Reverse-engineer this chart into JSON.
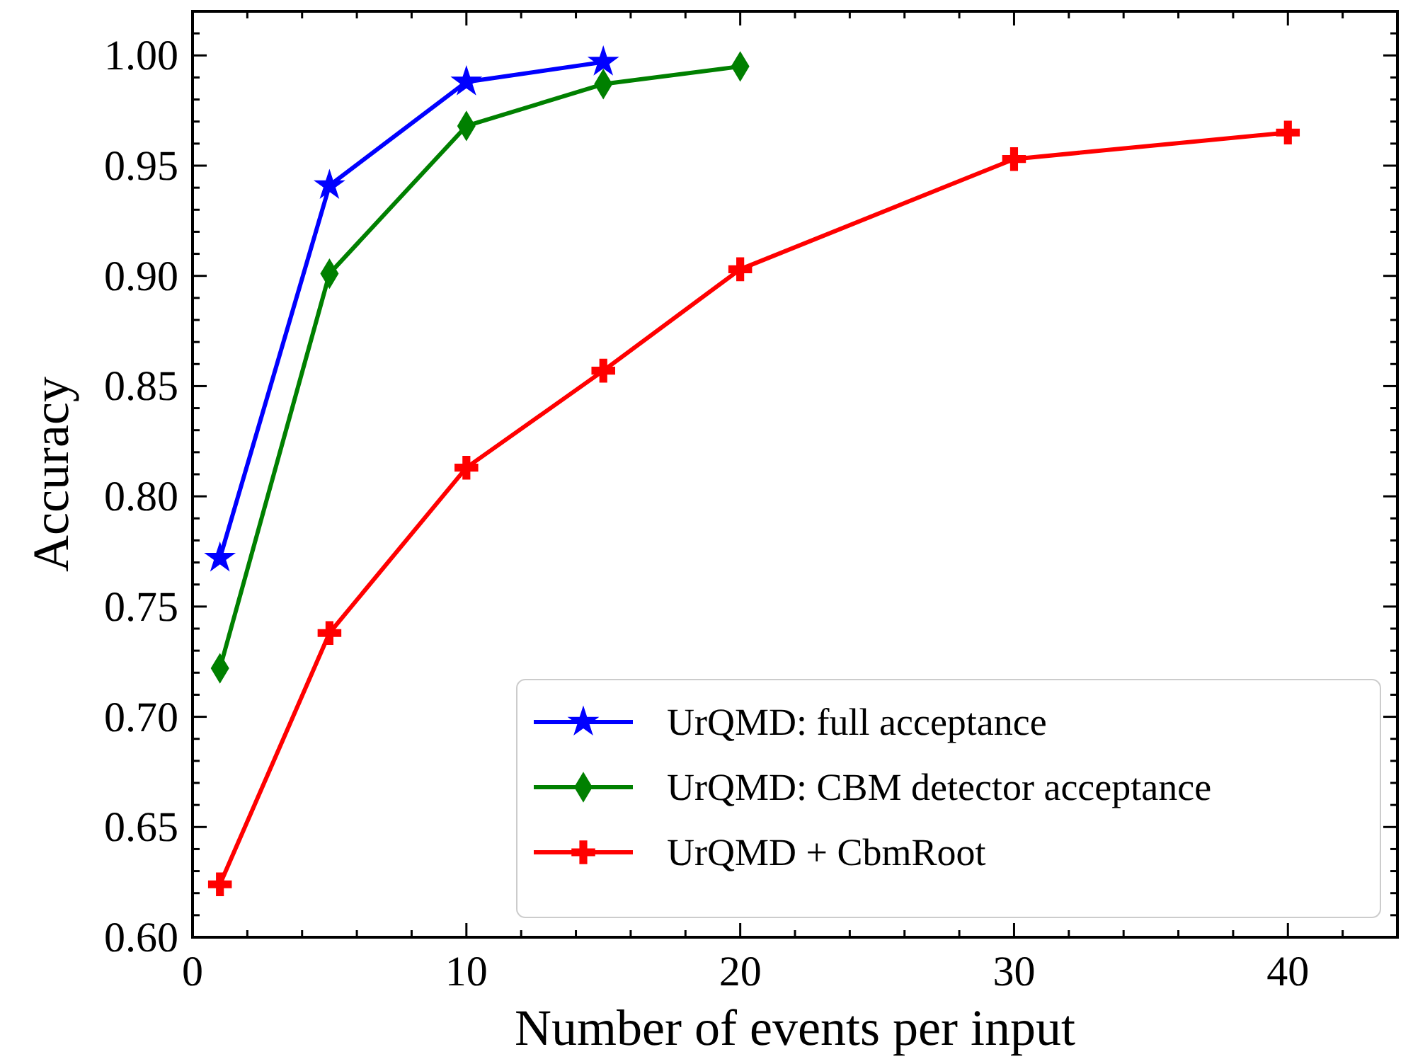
{
  "chart_data": {
    "type": "line",
    "xlabel": "Number of events per input",
    "ylabel": "Accuracy",
    "xlim": [
      0,
      44
    ],
    "ylim": [
      0.6,
      1.02
    ],
    "xticks": [
      0,
      {
        "value": 2,
        "label": null
      },
      {
        "value": 4,
        "label": null
      },
      {
        "value": 6,
        "label": null
      },
      {
        "value": 8,
        "label": null
      },
      10,
      {
        "value": 12,
        "label": null
      },
      {
        "value": 14,
        "label": null
      },
      {
        "value": 16,
        "label": null
      },
      {
        "value": 18,
        "label": null
      },
      20,
      {
        "value": 22,
        "label": null
      },
      {
        "value": 24,
        "label": null
      },
      {
        "value": 26,
        "label": null
      },
      {
        "value": 28,
        "label": null
      },
      30,
      {
        "value": 32,
        "label": null
      },
      {
        "value": 34,
        "label": null
      },
      {
        "value": 36,
        "label": null
      },
      {
        "value": 38,
        "label": null
      },
      40,
      {
        "value": 42,
        "label": null
      }
    ],
    "yticks": [
      {
        "value": 0.6,
        "label": "0.60"
      },
      {
        "value": 0.61,
        "label": null
      },
      {
        "value": 0.62,
        "label": null
      },
      {
        "value": 0.63,
        "label": null
      },
      {
        "value": 0.64,
        "label": null
      },
      {
        "value": 0.65,
        "label": "0.65"
      },
      {
        "value": 0.66,
        "label": null
      },
      {
        "value": 0.67,
        "label": null
      },
      {
        "value": 0.68,
        "label": null
      },
      {
        "value": 0.69,
        "label": null
      },
      {
        "value": 0.7,
        "label": "0.70"
      },
      {
        "value": 0.71,
        "label": null
      },
      {
        "value": 0.72,
        "label": null
      },
      {
        "value": 0.73,
        "label": null
      },
      {
        "value": 0.74,
        "label": null
      },
      {
        "value": 0.75,
        "label": "0.75"
      },
      {
        "value": 0.76,
        "label": null
      },
      {
        "value": 0.77,
        "label": null
      },
      {
        "value": 0.78,
        "label": null
      },
      {
        "value": 0.79,
        "label": null
      },
      {
        "value": 0.8,
        "label": "0.80"
      },
      {
        "value": 0.81,
        "label": null
      },
      {
        "value": 0.82,
        "label": null
      },
      {
        "value": 0.83,
        "label": null
      },
      {
        "value": 0.84,
        "label": null
      },
      {
        "value": 0.85,
        "label": "0.85"
      },
      {
        "value": 0.86,
        "label": null
      },
      {
        "value": 0.87,
        "label": null
      },
      {
        "value": 0.88,
        "label": null
      },
      {
        "value": 0.89,
        "label": null
      },
      {
        "value": 0.9,
        "label": "0.90"
      },
      {
        "value": 0.91,
        "label": null
      },
      {
        "value": 0.92,
        "label": null
      },
      {
        "value": 0.93,
        "label": null
      },
      {
        "value": 0.94,
        "label": null
      },
      {
        "value": 0.95,
        "label": "0.95"
      },
      {
        "value": 0.96,
        "label": null
      },
      {
        "value": 0.97,
        "label": null
      },
      {
        "value": 0.98,
        "label": null
      },
      {
        "value": 0.99,
        "label": null
      },
      {
        "value": 1.0,
        "label": "1.00"
      },
      {
        "value": 1.01,
        "label": null
      }
    ],
    "grid": false,
    "legend": "bottom right",
    "line_style": "solid",
    "series": [
      {
        "name": "UrQMD: full acceptance",
        "color": "#0000ff",
        "marker": "star",
        "x": [
          1,
          5,
          10,
          15
        ],
        "values": [
          0.772,
          0.941,
          0.988,
          0.997
        ]
      },
      {
        "name": "UrQMD: CBM detector acceptance",
        "color": "#008000",
        "marker": "diamond",
        "x": [
          1,
          5,
          10,
          15,
          20
        ],
        "values": [
          0.722,
          0.901,
          0.968,
          0.987,
          0.995
        ]
      },
      {
        "name": "UrQMD + CbmRoot",
        "color": "#ff0000",
        "marker": "cross",
        "x": [
          1,
          5,
          10,
          15,
          20,
          30,
          40
        ],
        "values": [
          0.624,
          0.738,
          0.813,
          0.857,
          0.903,
          0.953,
          0.965
        ]
      }
    ]
  }
}
